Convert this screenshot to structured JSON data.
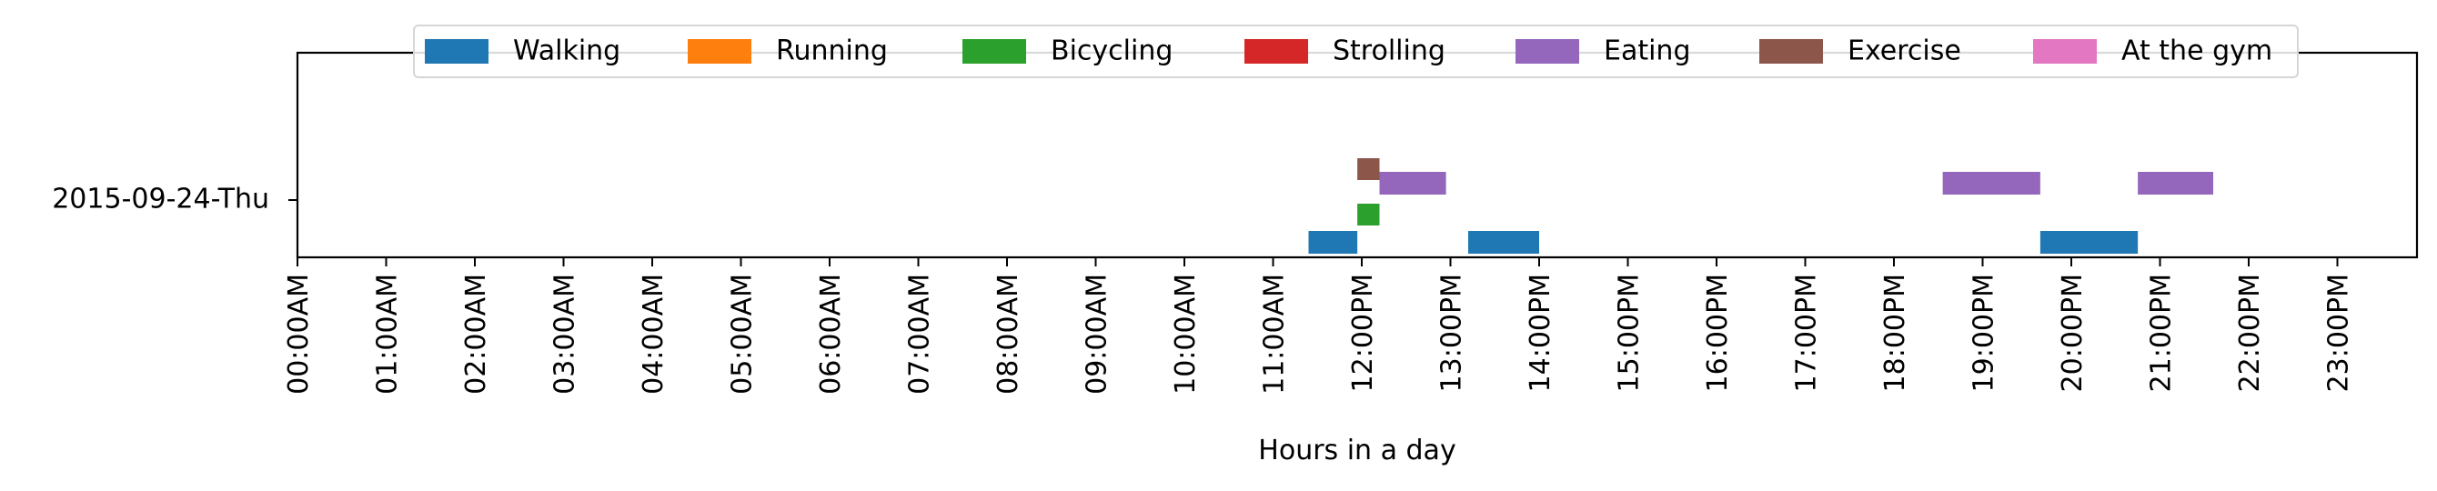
{
  "chart_data": {
    "type": "timeline",
    "title": "",
    "xlabel": "Hours in a day",
    "ylabel": "",
    "y_category": "2015-09-24-Thu",
    "xlim": [
      0,
      24
    ],
    "x_ticks": [
      "00:00AM",
      "01:00AM",
      "02:00AM",
      "03:00AM",
      "04:00AM",
      "05:00AM",
      "06:00AM",
      "07:00AM",
      "08:00AM",
      "09:00AM",
      "10:00AM",
      "11:00AM",
      "12:00PM",
      "13:00PM",
      "14:00PM",
      "15:00PM",
      "16:00PM",
      "17:00PM",
      "18:00PM",
      "19:00PM",
      "20:00PM",
      "21:00PM",
      "22:00PM",
      "23:00PM"
    ],
    "legend_position": "top-center",
    "legend": [
      {
        "name": "Walking",
        "color": "#1f77b4"
      },
      {
        "name": "Running",
        "color": "#ff7f0e"
      },
      {
        "name": "Bicycling",
        "color": "#2ca02c"
      },
      {
        "name": "Strolling",
        "color": "#d62728"
      },
      {
        "name": "Eating",
        "color": "#9467bd"
      },
      {
        "name": "Exercise",
        "color": "#8c564b"
      },
      {
        "name": "At the gym",
        "color": "#e377c2"
      }
    ],
    "segments": [
      {
        "activity": "Walking",
        "start": 11.4,
        "end": 11.95
      },
      {
        "activity": "Walking",
        "start": 13.2,
        "end": 14.0
      },
      {
        "activity": "Walking",
        "start": 19.65,
        "end": 20.75
      },
      {
        "activity": "Bicycling",
        "start": 11.95,
        "end": 12.2
      },
      {
        "activity": "Eating",
        "start": 12.2,
        "end": 12.95
      },
      {
        "activity": "Eating",
        "start": 18.55,
        "end": 19.65
      },
      {
        "activity": "Eating",
        "start": 20.75,
        "end": 21.6
      },
      {
        "activity": "Exercise",
        "start": 11.95,
        "end": 12.2
      }
    ]
  }
}
